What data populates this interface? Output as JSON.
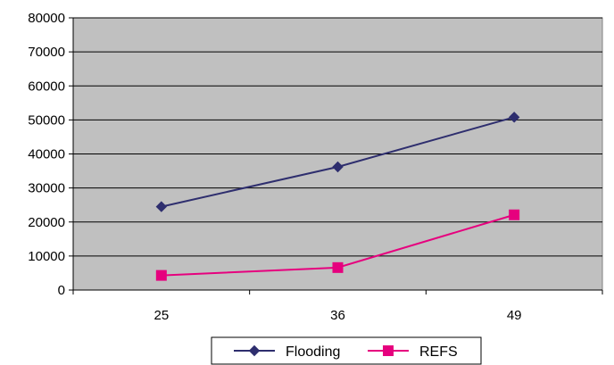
{
  "chart_data": {
    "type": "line",
    "categories": [
      "25",
      "36",
      "49"
    ],
    "series": [
      {
        "name": "Flooding",
        "values": [
          24500,
          36200,
          50800
        ],
        "color": "#2e2e6e",
        "marker": "diamond"
      },
      {
        "name": "REFS",
        "values": [
          4300,
          6600,
          22100
        ],
        "color": "#e6007e",
        "marker": "square"
      }
    ],
    "ylim": [
      0,
      80000
    ],
    "yticks": [
      0,
      10000,
      20000,
      30000,
      40000,
      50000,
      60000,
      70000,
      80000
    ],
    "grid": true,
    "plot_background": "#c0c0c0",
    "legend_position": "bottom"
  }
}
